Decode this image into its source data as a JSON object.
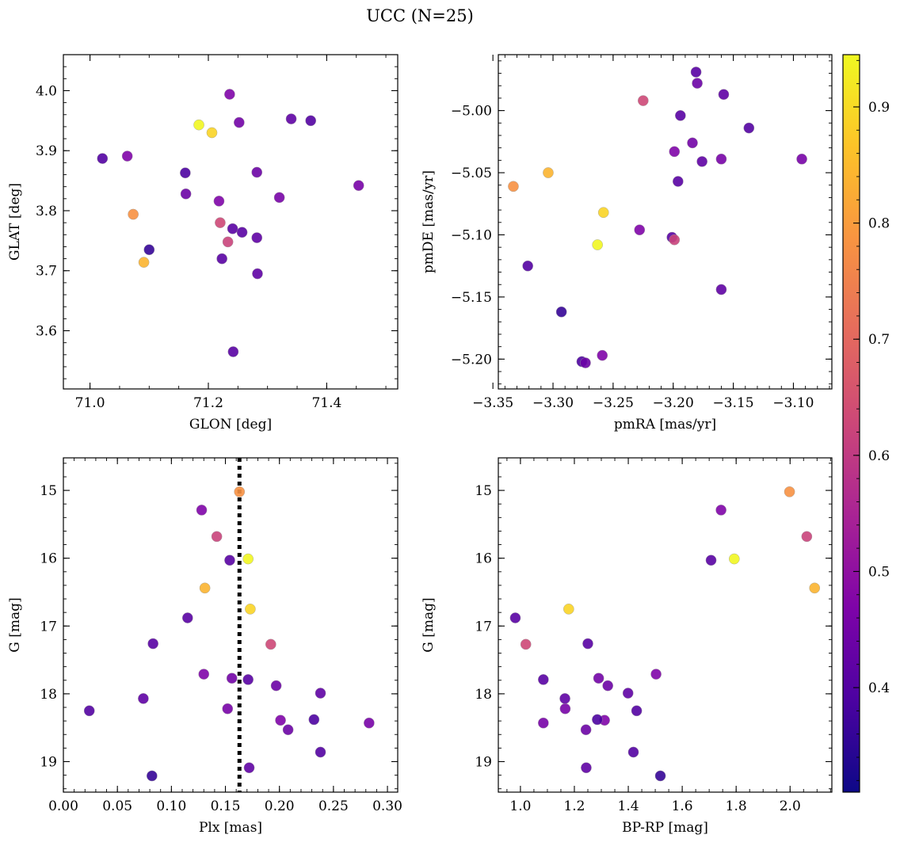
{
  "chart_data": {
    "suptitle": "UCC (N=25)",
    "colorbar": {
      "colormap": "plasma",
      "min": 0.31,
      "max": 0.945,
      "ticks": [
        0.4,
        0.5,
        0.6,
        0.7,
        0.8,
        0.9
      ],
      "tick_labels": [
        "0.4",
        "0.5",
        "0.6",
        "0.7",
        "0.8",
        "0.9"
      ]
    },
    "stars": [
      {
        "glon": 71.021,
        "glat": 3.887,
        "pmra": -3.321,
        "pmde": -5.125,
        "plx": 0.024,
        "g": 18.25,
        "bprp": 1.431,
        "c": 0.4
      },
      {
        "glon": 71.063,
        "glat": 3.891,
        "pmra": -3.259,
        "pmde": -5.197,
        "plx": 0.201,
        "g": 18.39,
        "bprp": 1.312,
        "c": 0.47
      },
      {
        "glon": 71.073,
        "glat": 3.794,
        "pmra": -3.333,
        "pmde": -5.061,
        "plx": 0.163,
        "g": 15.02,
        "bprp": 1.998,
        "c": 0.78
      },
      {
        "glon": 71.091,
        "glat": 3.714,
        "pmra": -3.304,
        "pmde": -5.05,
        "plx": 0.131,
        "g": 16.44,
        "bprp": 2.091,
        "c": 0.84
      },
      {
        "glon": 71.1,
        "glat": 3.735,
        "pmra": -3.293,
        "pmde": -5.162,
        "plx": 0.082,
        "g": 19.21,
        "bprp": 1.519,
        "c": 0.36
      },
      {
        "glon": 71.161,
        "glat": 3.863,
        "pmra": -3.276,
        "pmde": -5.202,
        "plx": 0.232,
        "g": 18.38,
        "bprp": 1.285,
        "c": 0.39
      },
      {
        "glon": 71.162,
        "glat": 3.828,
        "pmra": -3.273,
        "pmde": -5.203,
        "plx": 0.208,
        "g": 18.53,
        "bprp": 1.243,
        "c": 0.44
      },
      {
        "glon": 71.184,
        "glat": 3.943,
        "pmra": -3.263,
        "pmde": -5.108,
        "plx": 0.171,
        "g": 16.01,
        "bprp": 1.793,
        "c": 0.94
      },
      {
        "glon": 71.206,
        "glat": 3.93,
        "pmra": -3.258,
        "pmde": -5.082,
        "plx": 0.173,
        "g": 16.75,
        "bprp": 1.179,
        "c": 0.89
      },
      {
        "glon": 71.218,
        "glat": 3.816,
        "pmra": -3.228,
        "pmde": -5.096,
        "plx": 0.13,
        "g": 17.71,
        "bprp": 1.503,
        "c": 0.47
      },
      {
        "glon": 71.22,
        "glat": 3.78,
        "pmra": -3.225,
        "pmde": -4.992,
        "plx": 0.192,
        "g": 17.27,
        "bprp": 1.02,
        "c": 0.63
      },
      {
        "glon": 71.223,
        "glat": 3.72,
        "pmra": -3.201,
        "pmde": -5.102,
        "plx": 0.154,
        "g": 16.03,
        "bprp": 1.707,
        "c": 0.41
      },
      {
        "glon": 71.233,
        "glat": 3.748,
        "pmra": -3.199,
        "pmde": -5.104,
        "plx": 0.142,
        "g": 15.68,
        "bprp": 2.062,
        "c": 0.62
      },
      {
        "glon": 71.236,
        "glat": 3.994,
        "pmra": -3.199,
        "pmde": -5.033,
        "plx": 0.128,
        "g": 15.29,
        "bprp": 1.744,
        "c": 0.47
      },
      {
        "glon": 71.241,
        "glat": 3.77,
        "pmra": -3.196,
        "pmde": -5.057,
        "plx": 0.083,
        "g": 17.26,
        "bprp": 1.25,
        "c": 0.41
      },
      {
        "glon": 71.242,
        "glat": 3.565,
        "pmra": -3.194,
        "pmde": -5.004,
        "plx": 0.115,
        "g": 16.88,
        "bprp": 0.981,
        "c": 0.41
      },
      {
        "glon": 71.252,
        "glat": 3.947,
        "pmra": -3.184,
        "pmde": -5.026,
        "plx": 0.156,
        "g": 17.77,
        "bprp": 1.29,
        "c": 0.45
      },
      {
        "glon": 71.257,
        "glat": 3.764,
        "pmra": -3.181,
        "pmde": -4.969,
        "plx": 0.171,
        "g": 17.79,
        "bprp": 1.085,
        "c": 0.41
      },
      {
        "glon": 71.282,
        "glat": 3.864,
        "pmra": -3.18,
        "pmde": -4.978,
        "plx": 0.197,
        "g": 17.88,
        "bprp": 1.324,
        "c": 0.44
      },
      {
        "glon": 71.282,
        "glat": 3.755,
        "pmra": -3.176,
        "pmde": -5.041,
        "plx": 0.074,
        "g": 18.07,
        "bprp": 1.165,
        "c": 0.42
      },
      {
        "glon": 71.283,
        "glat": 3.695,
        "pmra": -3.16,
        "pmde": -5.144,
        "plx": 0.238,
        "g": 17.99,
        "bprp": 1.399,
        "c": 0.42
      },
      {
        "glon": 71.32,
        "glat": 3.822,
        "pmra": -3.16,
        "pmde": -5.039,
        "plx": 0.152,
        "g": 18.22,
        "bprp": 1.166,
        "c": 0.46
      },
      {
        "glon": 71.34,
        "glat": 3.953,
        "pmra": -3.158,
        "pmde": -4.987,
        "plx": 0.172,
        "g": 19.09,
        "bprp": 1.244,
        "c": 0.42
      },
      {
        "glon": 71.373,
        "glat": 3.95,
        "pmra": -3.137,
        "pmde": -5.014,
        "plx": 0.238,
        "g": 18.86,
        "bprp": 1.419,
        "c": 0.4
      },
      {
        "glon": 71.454,
        "glat": 3.842,
        "pmra": -3.093,
        "pmde": -5.039,
        "plx": 0.283,
        "g": 18.43,
        "bprp": 1.085,
        "c": 0.46
      }
    ],
    "panels": [
      {
        "type": "scatter",
        "x_key": "glon",
        "y_key": "glat",
        "xlabel": "GLON [deg]",
        "ylabel": "GLAT [deg]",
        "xlim": [
          70.955,
          71.52
        ],
        "ylim": [
          3.503,
          4.06
        ],
        "y_inverted": false,
        "xticks": [
          71.0,
          71.2,
          71.4
        ],
        "xtick_labels": [
          "71.0",
          "71.2",
          "71.4"
        ],
        "yticks": [
          3.6,
          3.7,
          3.8,
          3.9,
          4.0
        ],
        "ytick_labels": [
          "3.6",
          "3.7",
          "3.8",
          "3.9",
          "4.0"
        ],
        "x_minor": 0.05,
        "y_minor": 0.02
      },
      {
        "type": "scatter",
        "x_key": "pmra",
        "y_key": "pmde",
        "xlabel": "pmRA [mas/yr]",
        "ylabel": "pmDE [mas/yr]",
        "xlim": [
          -3.3455,
          -3.068
        ],
        "ylim": [
          -5.224,
          -4.955
        ],
        "y_inverted": false,
        "xticks": [
          -3.35,
          -3.3,
          -3.25,
          -3.2,
          -3.15,
          -3.1
        ],
        "xtick_labels": [
          "−3.35",
          "−3.30",
          "−3.25",
          "−3.20",
          "−3.15",
          "−3.10"
        ],
        "yticks": [
          -5.2,
          -5.15,
          -5.1,
          -5.05,
          -5.0
        ],
        "ytick_labels": [
          "−5.20",
          "−5.15",
          "−5.10",
          "−5.05",
          "−5.00"
        ],
        "x_minor": 0.01,
        "y_minor": 0.01
      },
      {
        "type": "scatter",
        "x_key": "plx",
        "y_key": "g",
        "xlabel": "Plx [mas]",
        "ylabel": "G [mag]",
        "xlim": [
          0.0,
          0.3095
        ],
        "ylim": [
          14.52,
          19.45
        ],
        "y_inverted": true,
        "xticks": [
          0.0,
          0.05,
          0.1,
          0.15,
          0.2,
          0.25,
          0.3
        ],
        "xtick_labels": [
          "0.00",
          "0.05",
          "0.10",
          "0.15",
          "0.20",
          "0.25",
          "0.30"
        ],
        "yticks": [
          15,
          16,
          17,
          18,
          19
        ],
        "ytick_labels": [
          "15",
          "16",
          "17",
          "18",
          "19"
        ],
        "x_minor": 0.01,
        "y_minor": 0.2,
        "vline": {
          "x": 0.163,
          "style": "dotted",
          "color": "#000000"
        }
      },
      {
        "type": "scatter",
        "x_key": "bprp",
        "y_key": "g",
        "xlabel": "BP-RP [mag]",
        "ylabel": "G [mag]",
        "xlim": [
          0.918,
          2.155
        ],
        "ylim": [
          14.52,
          19.45
        ],
        "y_inverted": true,
        "xticks": [
          1.0,
          1.2,
          1.4,
          1.6,
          1.8,
          2.0
        ],
        "xtick_labels": [
          "1.0",
          "1.2",
          "1.4",
          "1.6",
          "1.8",
          "2.0"
        ],
        "yticks": [
          15,
          16,
          17,
          18,
          19
        ],
        "ytick_labels": [
          "15",
          "16",
          "17",
          "18",
          "19"
        ],
        "x_minor": 0.05,
        "y_minor": 0.2
      }
    ]
  }
}
